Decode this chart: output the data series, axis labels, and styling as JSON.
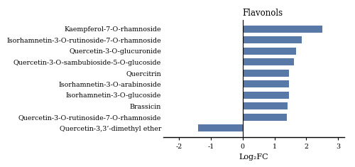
{
  "title": "Flavonols",
  "xlabel": "Log₂FC",
  "categories": [
    "Quercetin-3,3’-dimethyl ether",
    "Quercetin-3-O-rutinoside-7-O-rhamnoside",
    "Brassicin",
    "Isorhamnetin-3-O-glucoside",
    "Isorhamnetin-3-O-arabinoside",
    "Quercitrin",
    "Quercetin-3-O-sambubioside-5-O-glucoside",
    "Quercetin-3-O-glucuronide",
    "Isorhamnetin-3-O-rutinoside-7-O-rhamnoside",
    "Kaempferol-7-O-rhamnoside"
  ],
  "values": [
    -1.4,
    1.38,
    1.42,
    1.46,
    1.46,
    1.46,
    1.62,
    1.67,
    1.85,
    2.5
  ],
  "bar_color": "#5878a8",
  "xlim": [
    -2.5,
    3.2
  ],
  "xticks": [
    -2,
    -1,
    0,
    1,
    2,
    3
  ],
  "figsize": [
    5.0,
    2.35
  ],
  "dpi": 100,
  "label_fontsize": 6.8,
  "title_fontsize": 8.5,
  "xlabel_fontsize": 8.0
}
